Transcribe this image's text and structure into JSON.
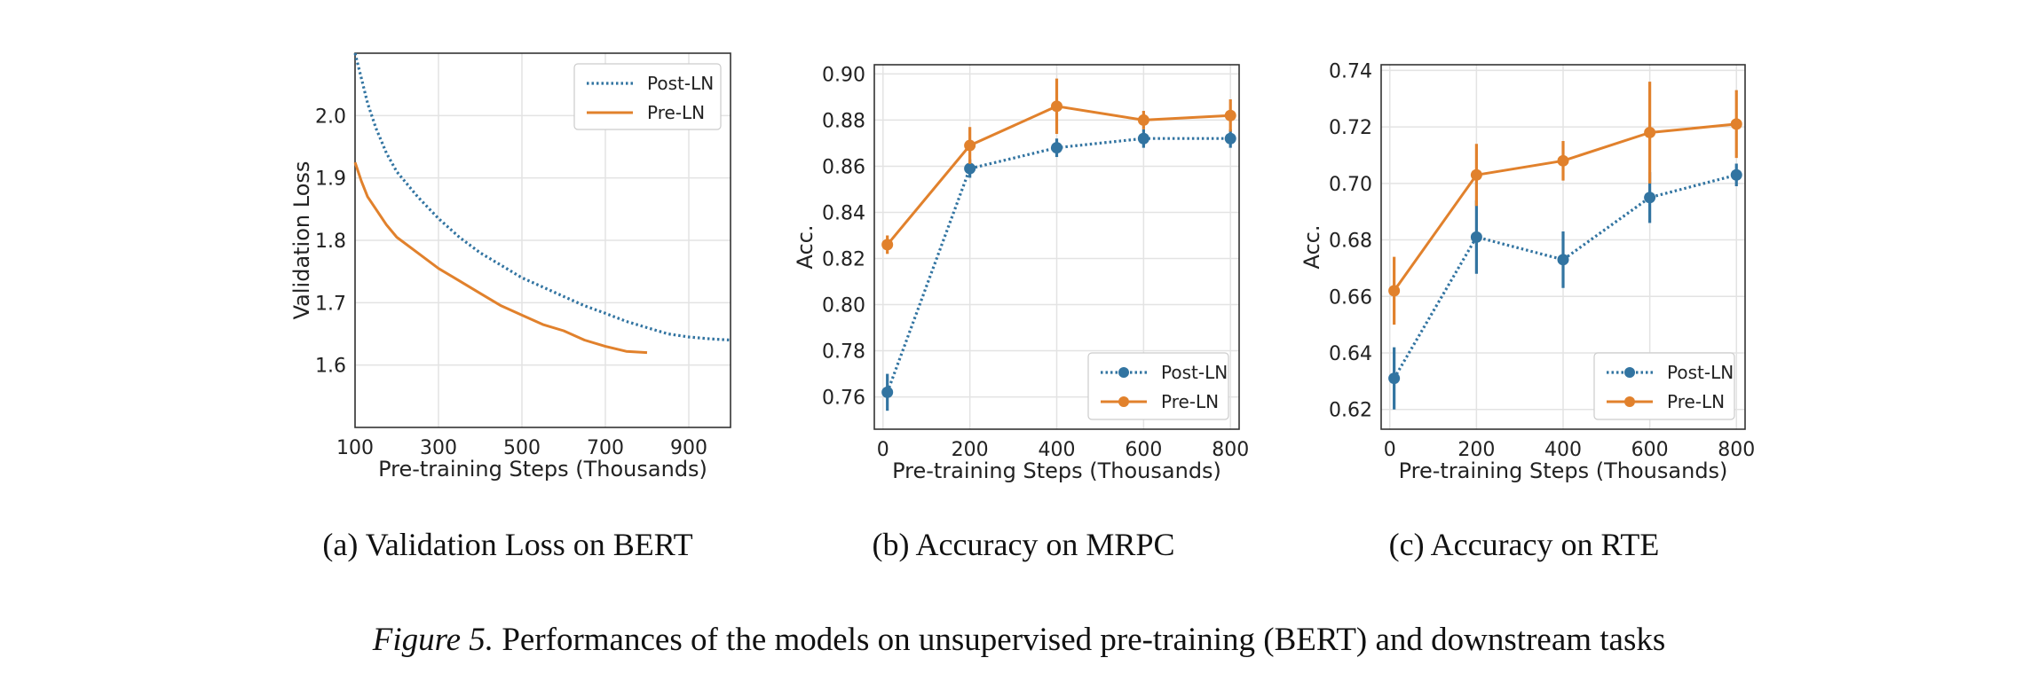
{
  "figure": {
    "label": "Figure 5.",
    "text": "Performances of the models on unsupervised pre-training (BERT) and downstream tasks"
  },
  "colors": {
    "post_ln": "#3274a1",
    "pre_ln": "#e1812c",
    "grid": "#e3e3e3",
    "axes": "#333333"
  },
  "chart_data": [
    {
      "type": "line",
      "subcaption_letter": "(a)",
      "subcaption_text": "Validation Loss on BERT",
      "xlabel": "Pre-training Steps (Thousands)",
      "ylabel": "Validation Loss",
      "xlim": [
        100,
        1000
      ],
      "ylim": [
        1.5,
        2.1
      ],
      "xticks": [
        100,
        300,
        500,
        700,
        900
      ],
      "yticks": [
        1.6,
        1.7,
        1.8,
        1.9,
        2.0
      ],
      "ytick_labels": [
        "1.6",
        "1.7",
        "1.8",
        "1.9",
        "2.0"
      ],
      "grid": true,
      "legend": "top-right",
      "series": [
        {
          "name": "Post-LN",
          "style": "dotted",
          "markers": false,
          "x": [
            100,
            115,
            130,
            150,
            175,
            200,
            250,
            300,
            350,
            400,
            450,
            500,
            550,
            600,
            650,
            700,
            750,
            800,
            850,
            900,
            950,
            1000
          ],
          "y": [
            2.1,
            2.06,
            2.02,
            1.98,
            1.94,
            1.91,
            1.87,
            1.835,
            1.805,
            1.78,
            1.76,
            1.74,
            1.725,
            1.71,
            1.695,
            1.683,
            1.67,
            1.66,
            1.65,
            1.645,
            1.642,
            1.64
          ]
        },
        {
          "name": "Pre-LN",
          "style": "solid",
          "markers": false,
          "x": [
            100,
            115,
            130,
            150,
            175,
            200,
            250,
            300,
            350,
            400,
            450,
            500,
            550,
            600,
            650,
            700,
            750,
            800
          ],
          "y": [
            1.925,
            1.895,
            1.87,
            1.85,
            1.825,
            1.805,
            1.78,
            1.755,
            1.735,
            1.715,
            1.695,
            1.68,
            1.665,
            1.655,
            1.64,
            1.63,
            1.622,
            1.62
          ]
        }
      ]
    },
    {
      "type": "line",
      "subcaption_letter": "(b)",
      "subcaption_text": "Accuracy on MRPC",
      "xlabel": "Pre-training Steps (Thousands)",
      "ylabel": "Acc.",
      "xlim": [
        -20,
        820
      ],
      "ylim": [
        0.746,
        0.904
      ],
      "xticks": [
        0,
        200,
        400,
        600,
        800
      ],
      "yticks": [
        0.76,
        0.78,
        0.8,
        0.82,
        0.84,
        0.86,
        0.88,
        0.9
      ],
      "ytick_labels": [
        "0.76",
        "0.78",
        "0.80",
        "0.82",
        "0.84",
        "0.86",
        "0.88",
        "0.90"
      ],
      "grid": true,
      "legend": "bottom-right",
      "series": [
        {
          "name": "Post-LN",
          "style": "dotted",
          "markers": true,
          "x": [
            10,
            200,
            400,
            600,
            800
          ],
          "y": [
            0.762,
            0.859,
            0.868,
            0.872,
            0.872
          ],
          "error": [
            0.008,
            0.004,
            0.004,
            0.004,
            0.004
          ]
        },
        {
          "name": "Pre-LN",
          "style": "solid",
          "markers": true,
          "x": [
            10,
            200,
            400,
            600,
            800
          ],
          "y": [
            0.826,
            0.869,
            0.886,
            0.88,
            0.882
          ],
          "error": [
            0.004,
            0.008,
            0.012,
            0.004,
            0.007
          ]
        }
      ]
    },
    {
      "type": "line",
      "subcaption_letter": "(c)",
      "subcaption_text": "Accuracy on RTE",
      "xlabel": "Pre-training Steps (Thousands)",
      "ylabel": "Acc.",
      "xlim": [
        -20,
        820
      ],
      "ylim": [
        0.613,
        0.742
      ],
      "xticks": [
        0,
        200,
        400,
        600,
        800
      ],
      "yticks": [
        0.62,
        0.64,
        0.66,
        0.68,
        0.7,
        0.72,
        0.74
      ],
      "ytick_labels": [
        "0.62",
        "0.64",
        "0.66",
        "0.68",
        "0.70",
        "0.72",
        "0.74"
      ],
      "grid": true,
      "legend": "bottom-right",
      "series": [
        {
          "name": "Post-LN",
          "style": "dotted",
          "markers": true,
          "x": [
            10,
            200,
            400,
            600,
            800
          ],
          "y": [
            0.631,
            0.681,
            0.673,
            0.695,
            0.703
          ],
          "error": [
            0.011,
            0.013,
            0.01,
            0.009,
            0.004
          ]
        },
        {
          "name": "Pre-LN",
          "style": "solid",
          "markers": true,
          "x": [
            10,
            200,
            400,
            600,
            800
          ],
          "y": [
            0.662,
            0.703,
            0.708,
            0.718,
            0.721
          ],
          "error": [
            0.012,
            0.011,
            0.007,
            0.018,
            0.012
          ]
        }
      ]
    }
  ]
}
